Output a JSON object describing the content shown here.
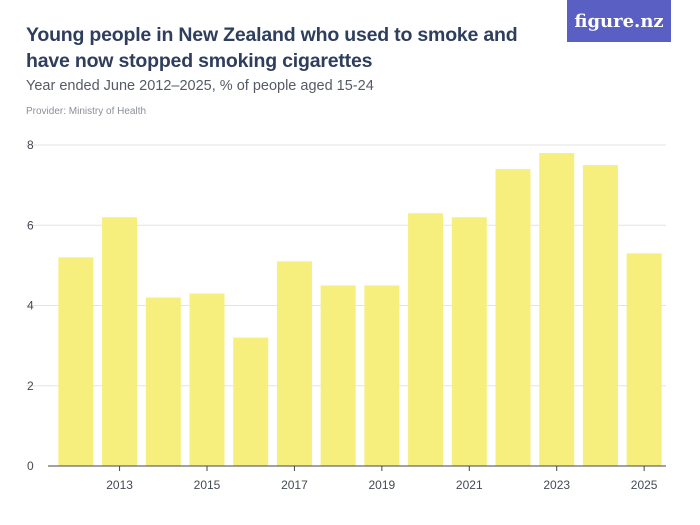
{
  "header": {
    "title": "Young people in New Zealand who used to smoke and have now stopped smoking cigarettes",
    "subtitle": "Year ended June 2012–2025, % of people aged 15-24",
    "provider": "Provider: Ministry of Health"
  },
  "logo": {
    "text": "figure.nz",
    "color": "#5a5fc4"
  },
  "colors": {
    "bar": "#f7ef7d",
    "grid": "#e3e3e3",
    "axis": "#444444"
  },
  "chart_data": {
    "type": "bar",
    "title": "Young people in New Zealand who used to smoke and have now stopped smoking cigarettes",
    "subtitle": "Year ended June 2012–2025, % of people aged 15-24",
    "categories": [
      "2012",
      "2013",
      "2014",
      "2015",
      "2016",
      "2017",
      "2018",
      "2019",
      "2020",
      "2021",
      "2022",
      "2023",
      "2024",
      "2025"
    ],
    "values": [
      5.2,
      6.2,
      4.2,
      4.3,
      3.2,
      5.1,
      4.5,
      4.5,
      6.3,
      6.2,
      7.4,
      7.8,
      7.5,
      5.3
    ],
    "x_tick_labels": [
      "2013",
      "2015",
      "2017",
      "2019",
      "2021",
      "2023",
      "2025"
    ],
    "y_ticks": [
      0,
      2,
      4,
      6,
      8
    ],
    "ylim": [
      0,
      8
    ],
    "xlabel": "",
    "ylabel": "",
    "grid": true,
    "legend": "none"
  }
}
